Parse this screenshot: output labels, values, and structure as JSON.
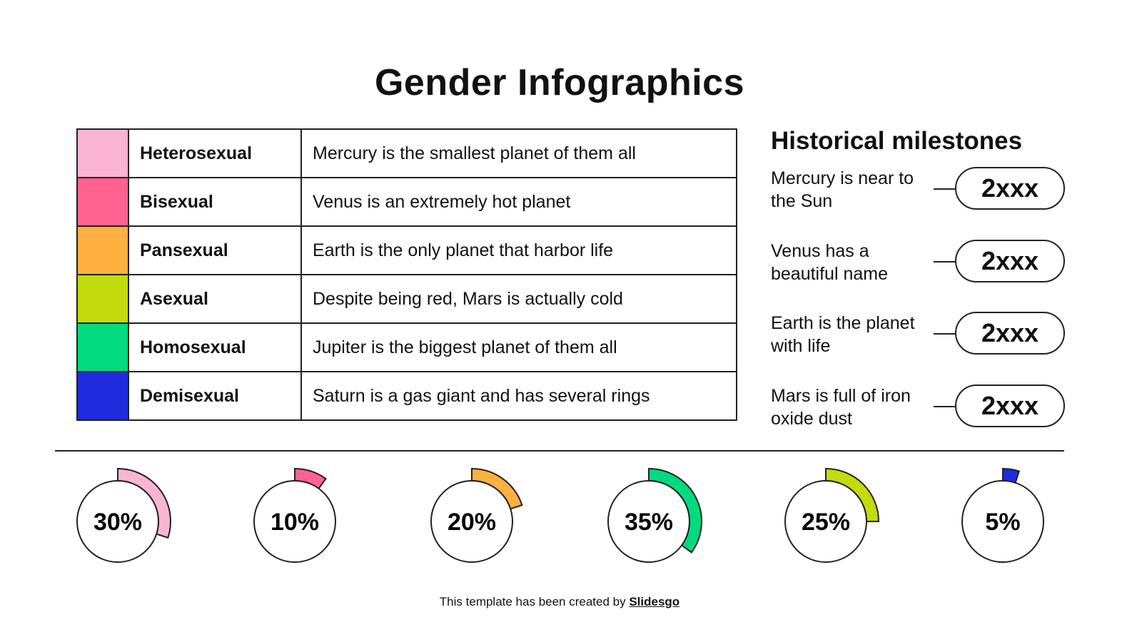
{
  "title": "Gender Infographics",
  "table": [
    {
      "color": "#FBB5D2",
      "name": "Heterosexual",
      "desc": "Mercury is the smallest planet of them all"
    },
    {
      "color": "#FF6290",
      "name": "Bisexual",
      "desc": "Venus is an extremely hot planet"
    },
    {
      "color": "#FDB03F",
      "name": "Pansexual",
      "desc": "Earth is the only planet that harbor life"
    },
    {
      "color": "#C3DB0C",
      "name": "Asexual",
      "desc": "Despite being red, Mars is actually cold"
    },
    {
      "color": "#02DA7F",
      "name": "Homosexual",
      "desc": "Jupiter is the biggest planet of them all"
    },
    {
      "color": "#1E2BDF",
      "name": "Demisexual",
      "desc": "Saturn is a gas giant and has several rings"
    }
  ],
  "milestones": {
    "title": "Historical milestones",
    "items": [
      {
        "text": "Mercury is near to the Sun",
        "year": "2xxx"
      },
      {
        "text": "Venus has a beautiful name",
        "year": "2xxx"
      },
      {
        "text": "Earth is the planet with life",
        "year": "2xxx"
      },
      {
        "text": "Mars is full of iron oxide dust",
        "year": "2xxx"
      }
    ]
  },
  "chart_data": {
    "type": "pie",
    "style": "radial-progress",
    "categories": [
      "Heterosexual",
      "Bisexual",
      "Pansexual",
      "Homosexual",
      "Asexual",
      "Demisexual"
    ],
    "values": [
      30,
      10,
      20,
      35,
      25,
      5
    ],
    "labels": [
      "30%",
      "10%",
      "20%",
      "35%",
      "25%",
      "5%"
    ],
    "colors": [
      "#FBB5D2",
      "#FF6290",
      "#FDB03F",
      "#02DA7F",
      "#C3DB0C",
      "#1E2BDF"
    ]
  },
  "footer": {
    "prefix": "This template has been created by ",
    "brand": "Slidesgo"
  }
}
